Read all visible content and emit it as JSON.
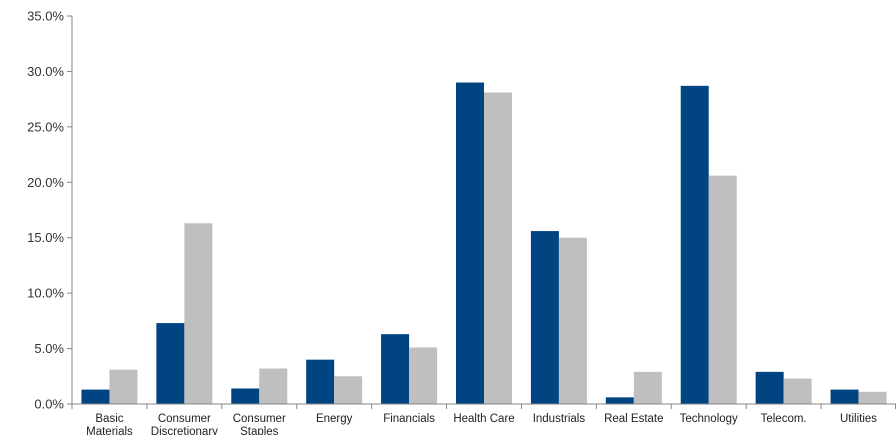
{
  "chart_data": {
    "type": "bar",
    "title": "",
    "xlabel": "",
    "ylabel": "",
    "ylim": [
      0,
      35
    ],
    "y_tick_format": "percent_1dp",
    "yticks": [
      "0.0%",
      "5.0%",
      "10.0%",
      "15.0%",
      "20.0%",
      "25.0%",
      "30.0%",
      "35.0%"
    ],
    "grid": false,
    "legend": "none",
    "categories": [
      [
        "Basic",
        "Materials"
      ],
      [
        "Consumer",
        "Discretionary"
      ],
      [
        "Consumer",
        "Staples"
      ],
      [
        "Energy"
      ],
      [
        "Financials"
      ],
      [
        "Health Care"
      ],
      [
        "Industrials"
      ],
      [
        "Real Estate"
      ],
      [
        "Technology"
      ],
      [
        "Telecom."
      ],
      [
        "Utilities"
      ]
    ],
    "series": [
      {
        "color": "#004481",
        "values": [
          1.3,
          7.3,
          1.4,
          4.0,
          6.3,
          29.0,
          15.6,
          0.6,
          28.7,
          2.9,
          1.3
        ]
      },
      {
        "color": "#bfbfbf",
        "values": [
          3.1,
          16.3,
          3.2,
          2.5,
          5.1,
          28.1,
          15.0,
          2.9,
          20.6,
          2.3,
          1.1
        ]
      }
    ]
  }
}
